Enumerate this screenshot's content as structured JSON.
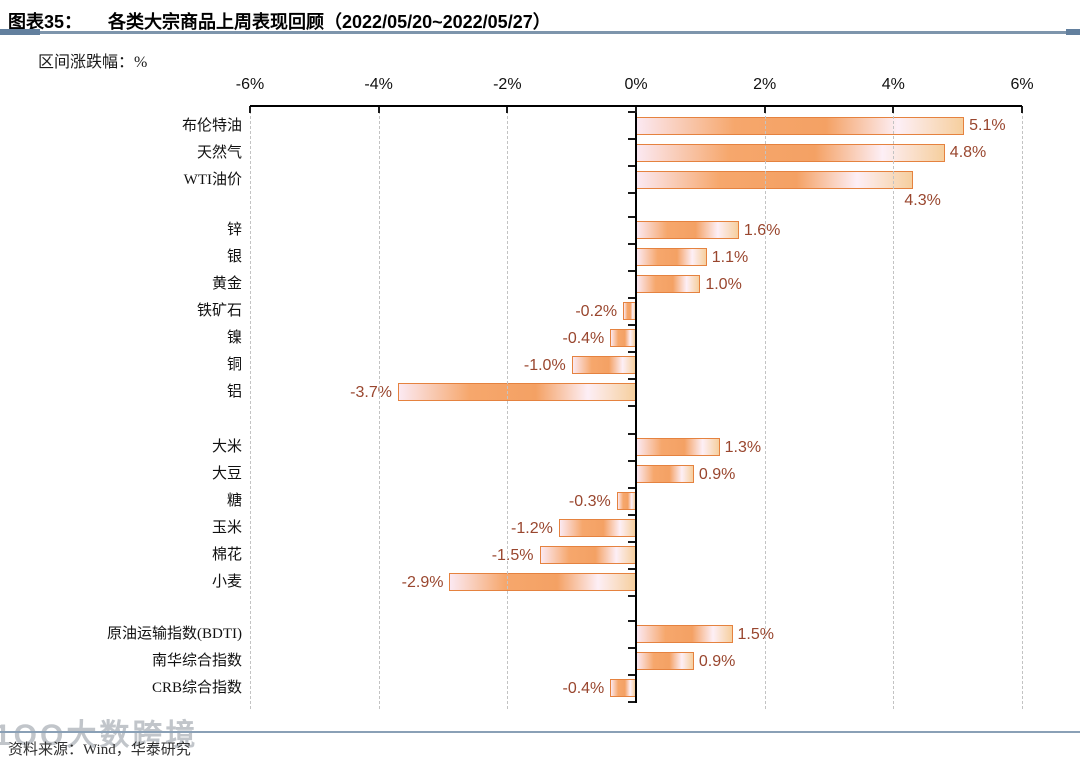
{
  "header": {
    "figure_label": "图表35：",
    "title": "各类大宗商品上周表现回顾（2022/05/20~2022/05/27）"
  },
  "chart": {
    "unit_label": "区间涨跌幅：%"
  },
  "chart_data": {
    "type": "bar",
    "orientation": "horizontal",
    "title": "各类大宗商品上周表现回顾（2022/05/20~2022/05/27）",
    "xlabel": "区间涨跌幅：%",
    "xlim": [
      -6,
      6
    ],
    "x_ticks": [
      {
        "value": -6,
        "label": "-6%"
      },
      {
        "value": -4,
        "label": "-4%"
      },
      {
        "value": -2,
        "label": "-2%"
      },
      {
        "value": 0,
        "label": "0%"
      },
      {
        "value": 2,
        "label": "2%"
      },
      {
        "value": 4,
        "label": "4%"
      },
      {
        "value": 6,
        "label": "6%"
      }
    ],
    "grid": "vertical-dashed",
    "legend": "none",
    "items": [
      {
        "group": 0,
        "label": "布伦特油",
        "value": 5.1,
        "display": "5.1%"
      },
      {
        "group": 0,
        "label": "天然气",
        "value": 4.8,
        "display": "4.8%"
      },
      {
        "group": 0,
        "label": "WTI油价",
        "value": 4.3,
        "display": "4.3%",
        "label_below": true
      },
      {
        "group": 1,
        "label": "锌",
        "value": 1.6,
        "display": "1.6%"
      },
      {
        "group": 1,
        "label": "银",
        "value": 1.1,
        "display": "1.1%"
      },
      {
        "group": 1,
        "label": "黄金",
        "value": 1.0,
        "display": "1.0%"
      },
      {
        "group": 1,
        "label": "铁矿石",
        "value": -0.2,
        "display": "-0.2%"
      },
      {
        "group": 1,
        "label": "镍",
        "value": -0.4,
        "display": "-0.4%"
      },
      {
        "group": 1,
        "label": "铜",
        "value": -1.0,
        "display": "-1.0%"
      },
      {
        "group": 1,
        "label": "铝",
        "value": -3.7,
        "display": "-3.7%"
      },
      {
        "group": 2,
        "label": "大米",
        "value": 1.3,
        "display": "1.3%"
      },
      {
        "group": 2,
        "label": "大豆",
        "value": 0.9,
        "display": "0.9%"
      },
      {
        "group": 2,
        "label": "糖",
        "value": -0.3,
        "display": "-0.3%"
      },
      {
        "group": 2,
        "label": "玉米",
        "value": -1.2,
        "display": "-1.2%"
      },
      {
        "group": 2,
        "label": "棉花",
        "value": -1.5,
        "display": "-1.5%"
      },
      {
        "group": 2,
        "label": "小麦",
        "value": -2.9,
        "display": "-2.9%"
      },
      {
        "group": 3,
        "label": "原油运输指数(BDTI)",
        "value": 1.5,
        "display": "1.5%"
      },
      {
        "group": 3,
        "label": "南华综合指数",
        "value": 0.9,
        "display": "0.9%"
      },
      {
        "group": 3,
        "label": "CRB综合指数",
        "value": -0.4,
        "display": "-0.4%"
      }
    ],
    "colors": {
      "bar_border": "#e5823f",
      "bar_gradient": [
        "#fbe9f2",
        "#f6a76c",
        "#f4a164",
        "#fdeff6",
        "#f6cf9e"
      ],
      "value_label": "#99462e",
      "axis": "#000000",
      "gridline": "#c3c3c3"
    }
  },
  "footer": {
    "source": "资料来源：Wind，华泰研究",
    "watermark": "1OO大数跨境"
  }
}
